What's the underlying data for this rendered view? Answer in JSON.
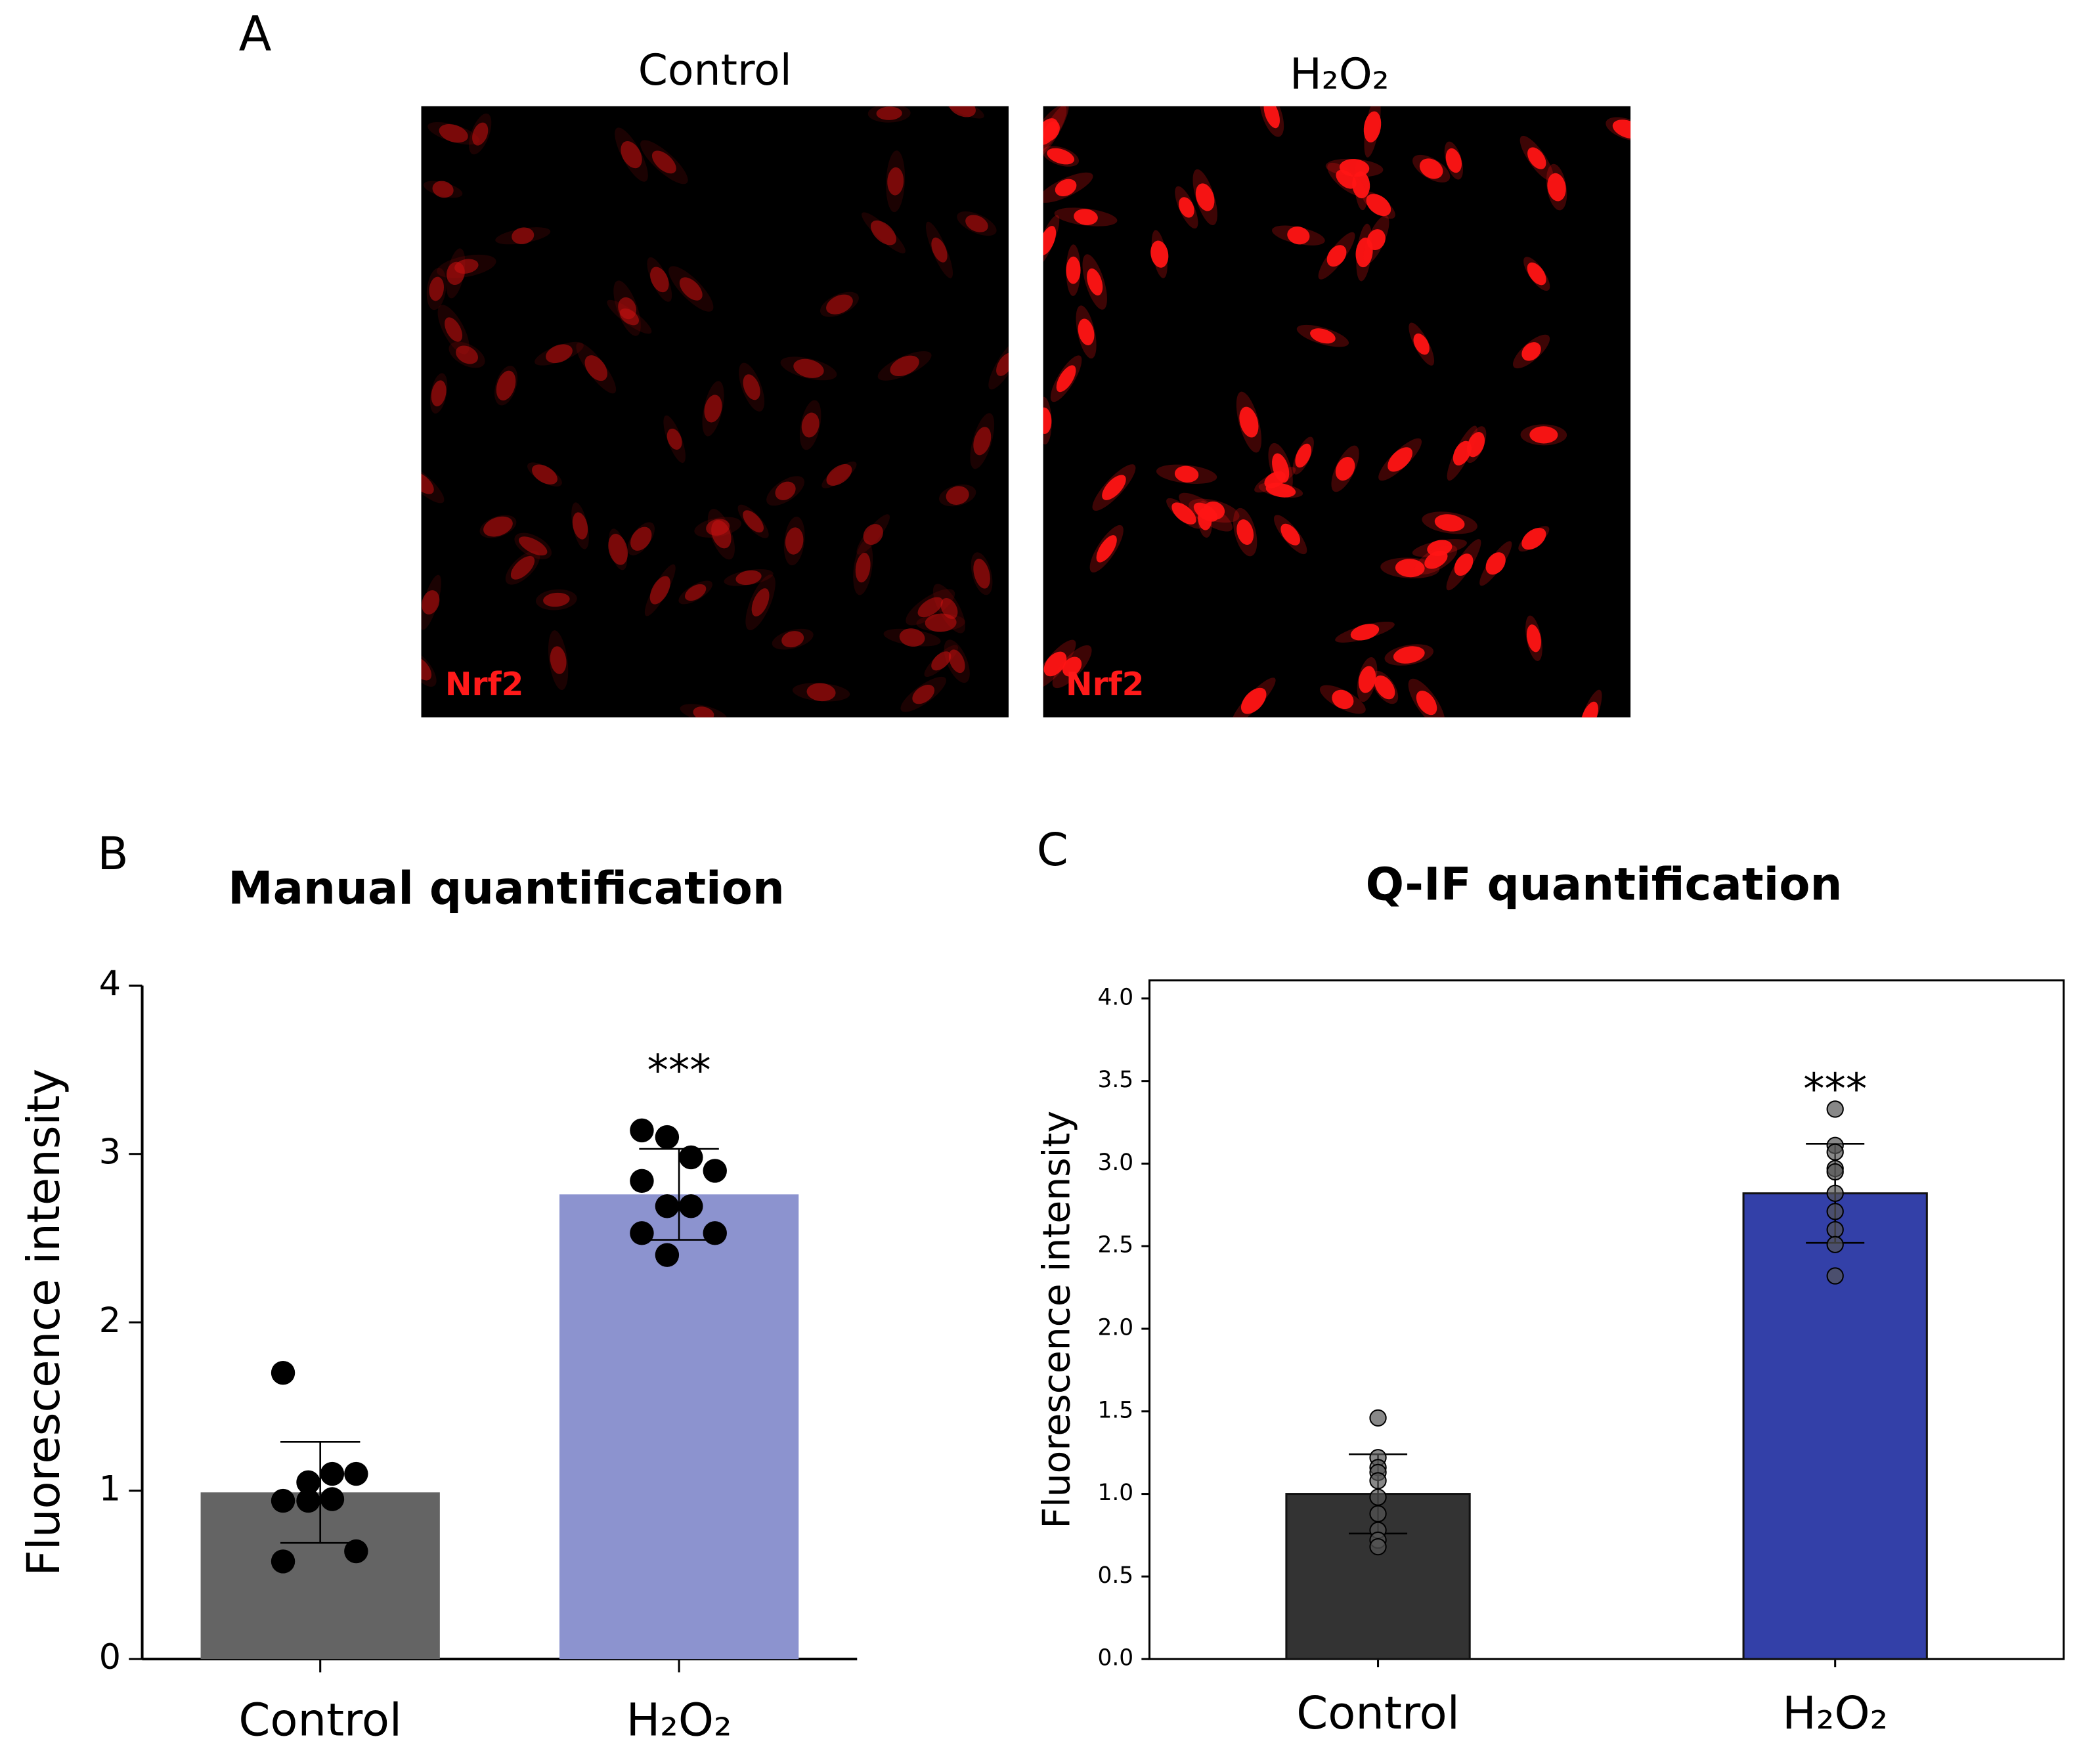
{
  "panel_a": {
    "label": "A",
    "images": [
      {
        "title": "Control",
        "stain": "Nrf2"
      },
      {
        "title": "H₂O₂",
        "stain": "Nrf2"
      }
    ]
  },
  "chart_data": [
    {
      "type": "bar",
      "panel": "B",
      "title": "Manual quantification",
      "y_label": "Fluorescence intensity",
      "categories": [
        "Control",
        "H₂O₂"
      ],
      "values": [
        0.99,
        2.76
      ],
      "errors": [
        0.3,
        0.27
      ],
      "colors": [
        "#646464",
        "#8c93cf"
      ],
      "point_color": "#000000",
      "frame": false,
      "points": [
        [
          1.7,
          1.05,
          1.1,
          1.1,
          0.94,
          0.94,
          0.95,
          0.64,
          0.58
        ],
        [
          3.14,
          3.1,
          2.98,
          2.9,
          2.84,
          2.69,
          2.69,
          2.53,
          2.53,
          2.4
        ]
      ],
      "significance": [
        null,
        "***"
      ],
      "ylim": [
        0,
        4
      ],
      "yticks": [
        0,
        1,
        2,
        3,
        4
      ]
    },
    {
      "type": "bar",
      "panel": "C",
      "title": "Q-IF quantification",
      "y_label": "Fluorescence intensity",
      "categories": [
        "Control",
        "H₂O₂"
      ],
      "values": [
        1.0,
        2.82
      ],
      "errors": [
        0.24,
        0.3
      ],
      "colors": [
        "#333333",
        "#3340a8"
      ],
      "point_color": "#555555",
      "frame": true,
      "points": [
        [
          1.46,
          1.22,
          1.16,
          1.13,
          1.08,
          0.98,
          0.88,
          0.78,
          0.72,
          0.68
        ],
        [
          3.33,
          3.11,
          3.07,
          2.97,
          2.95,
          2.82,
          2.71,
          2.6,
          2.51,
          2.32
        ]
      ],
      "significance": [
        null,
        "***"
      ],
      "ylim": [
        0,
        4.11
      ],
      "yticks": [
        {
          "value": 0,
          "label": "0.0"
        },
        0.5,
        {
          "value": 1,
          "label": "1.0"
        },
        1.5,
        {
          "value": 2,
          "label": "2.0"
        },
        2.5,
        {
          "value": 3,
          "label": "3.0"
        },
        3.5,
        {
          "value": 4,
          "label": "4.0"
        }
      ]
    }
  ]
}
